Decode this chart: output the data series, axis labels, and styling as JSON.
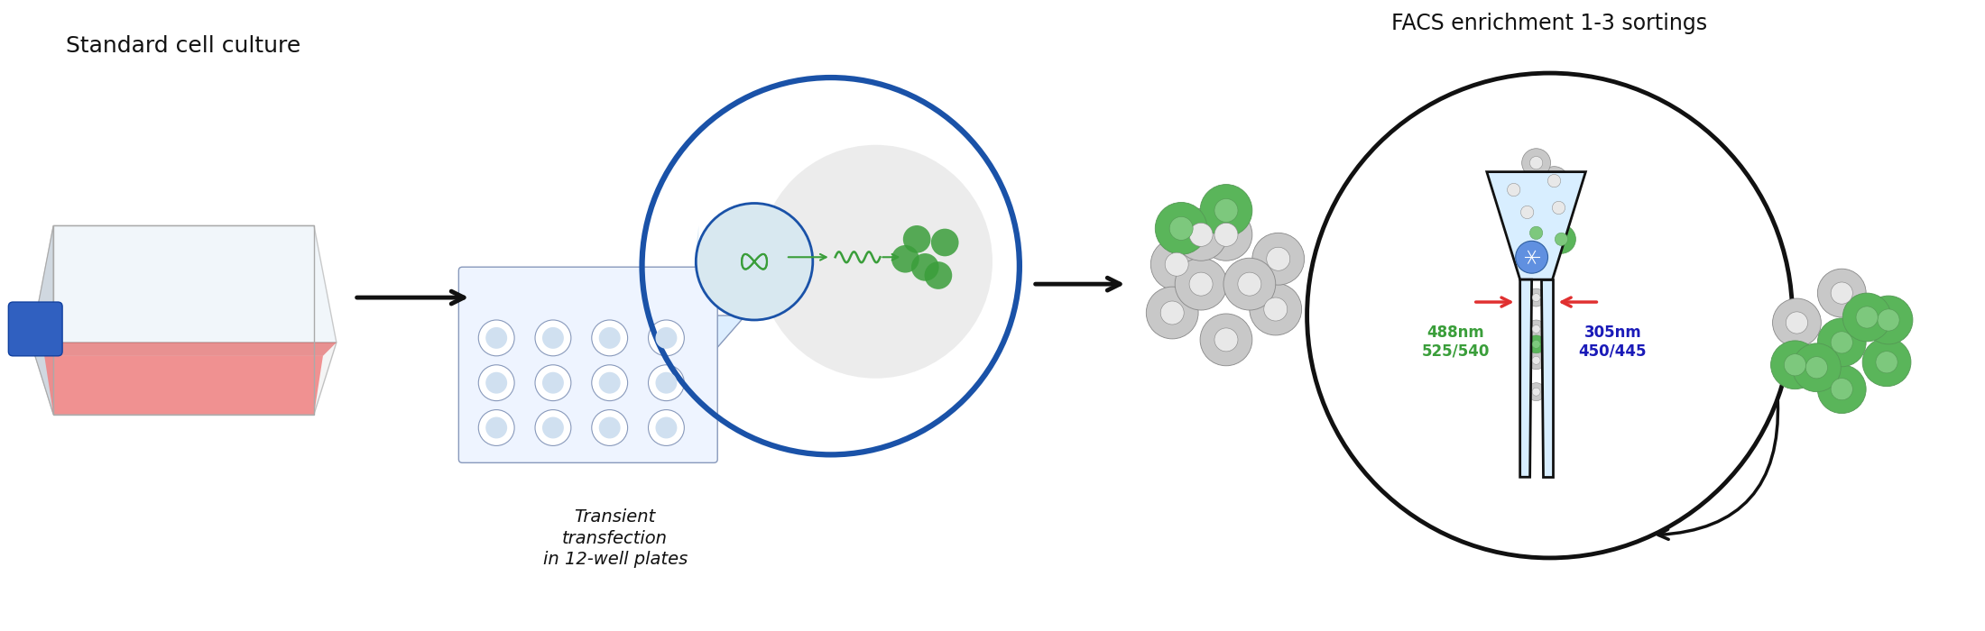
{
  "label_standard_cell_culture": "Standard cell culture",
  "label_transient_transfection": "Transient\ntransfection\nin 12-well plates",
  "label_facs_enrichment": "FACS enrichment 1-3 sortings",
  "label_488nm": "488nm\n525/540",
  "label_305nm": "305nm\n450/445",
  "color_green": "#3a9e3a",
  "color_green_light": "#7dc87d",
  "color_green_cell": "#5ab55a",
  "color_gray_cell": "#c8c8c8",
  "color_gray_cell_inner": "#e8e8e8",
  "color_blue_circle": "#1a52a8",
  "color_blue_light": "#a8c8e8",
  "color_pink": "#f08080",
  "color_pink_dark": "#e05050",
  "color_blue_cap": "#3060c0",
  "color_red_arrow": "#e03030",
  "color_dark_blue_text": "#1a1ab8",
  "color_black": "#111111",
  "color_white": "#ffffff",
  "color_light_gray": "#e0e0e0",
  "color_bg": "#ffffff"
}
